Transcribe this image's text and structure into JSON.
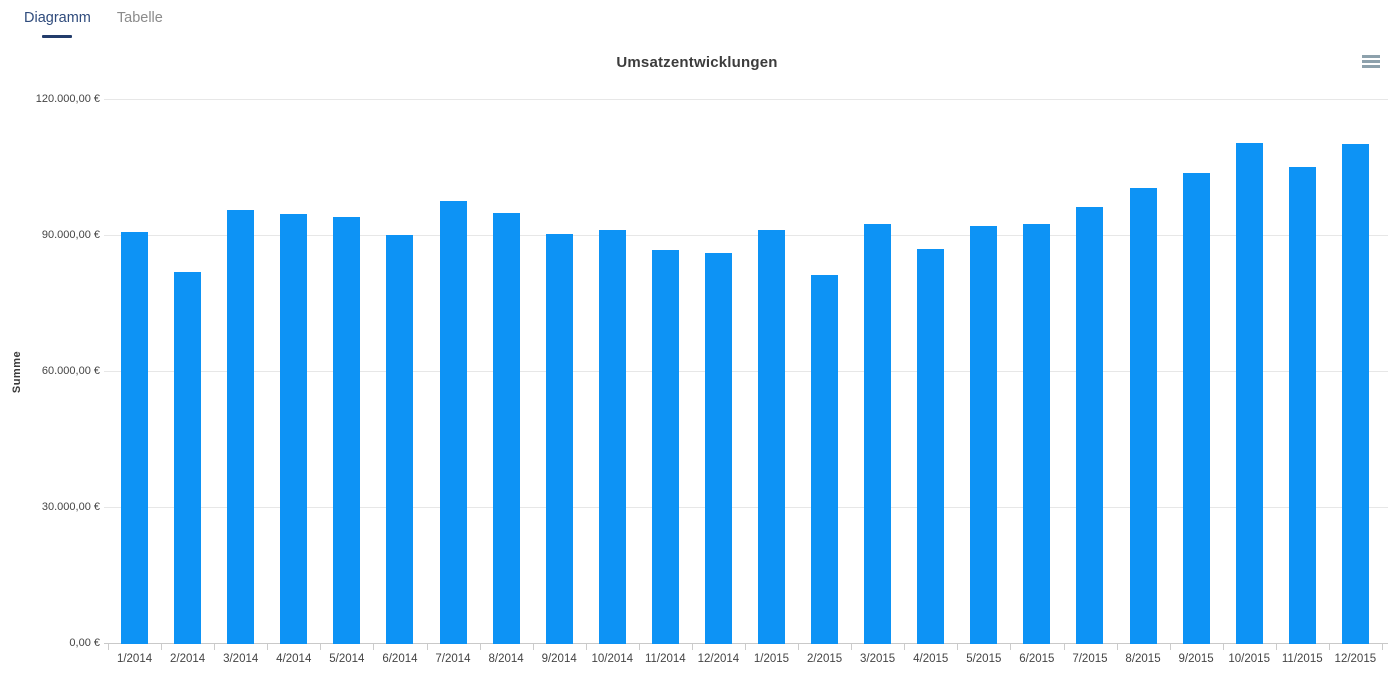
{
  "tabs": [
    {
      "label": "Diagramm",
      "active": true
    },
    {
      "label": "Tabelle",
      "active": false
    }
  ],
  "header": {
    "menu_icon": "hamburger-menu-icon"
  },
  "chart_data": {
    "type": "bar",
    "title": "Umsatzentwicklungen",
    "xlabel": "",
    "ylabel": "Summe",
    "ylim": [
      0,
      120000
    ],
    "grid": true,
    "legend": "none",
    "bar_color": "#0d93f5",
    "y_ticks": [
      "120.000,00 €",
      "90.000,00 €",
      "60.000,00 €",
      "30.000,00 €",
      "0,00 €"
    ],
    "y_tick_values": [
      120000,
      90000,
      60000,
      30000,
      0
    ],
    "categories": [
      "1/2014",
      "2/2014",
      "3/2014",
      "4/2014",
      "5/2014",
      "6/2014",
      "7/2014",
      "8/2014",
      "9/2014",
      "10/2014",
      "11/2014",
      "12/2014",
      "1/2015",
      "2/2015",
      "3/2015",
      "4/2015",
      "5/2015",
      "6/2015",
      "7/2015",
      "8/2015",
      "9/2015",
      "10/2015",
      "11/2015",
      "12/2015"
    ],
    "values": [
      90800,
      82000,
      95700,
      94900,
      94200,
      90300,
      97700,
      95100,
      90500,
      91300,
      86900,
      86300,
      91400,
      81400,
      92600,
      87100,
      92300,
      92600,
      96500,
      100700,
      103800,
      110600,
      105300,
      110200
    ]
  }
}
